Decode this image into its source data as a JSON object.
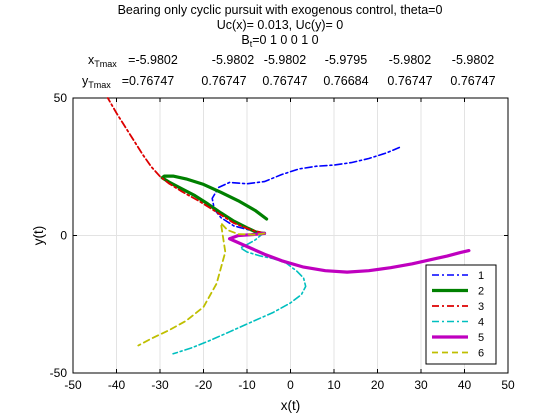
{
  "title": {
    "line1": "Bearing only cyclic pursuit with exogenous control, theta=0",
    "line2": "Uc(x)= 0.013, Uc(y)= 0",
    "bt_base": "B",
    "bt_sub": "t",
    "bt_values": "=0  1  0  0  1  0"
  },
  "tmax": {
    "x_base": "x",
    "x_sub": "Tmax",
    "x_values": [
      "=-5.9802",
      "-5.9802",
      "-5.9802",
      "-5.9795",
      "-5.9802",
      "-5.9802"
    ],
    "y_base": "y",
    "y_sub": "Tmax",
    "y_values": [
      "=0.76747",
      "0.76747",
      "0.76747",
      "0.76684",
      "0.76747",
      "0.76747"
    ]
  },
  "chart_data": {
    "type": "line",
    "xlabel": "x(t)",
    "ylabel": "y(t)",
    "xlim": [
      -50,
      50
    ],
    "ylim": [
      -50,
      50
    ],
    "xticks": [
      -50,
      -40,
      -30,
      -20,
      -10,
      0,
      10,
      20,
      30,
      40,
      50
    ],
    "yticks": [
      -50,
      0,
      50
    ],
    "xtick_labels": [
      "-50",
      "-40",
      "-30",
      "-20",
      "-10",
      "0",
      "10",
      "20",
      "30",
      "40",
      "50"
    ],
    "ytick_labels": [
      "-50",
      "0",
      "50"
    ],
    "grid": true,
    "legend_position": "bottom-right",
    "series": [
      {
        "name": "1",
        "color": "#0000ff",
        "dash": "dashdot",
        "width": 1.6,
        "x": [
          25,
          22,
          18,
          14,
          10,
          6,
          2,
          -2,
          -6,
          -10,
          -14,
          -16.5,
          -18,
          -17.5,
          -16,
          -13,
          -10,
          -8,
          -6,
          -6.5,
          -5.98
        ],
        "y": [
          32,
          30,
          28,
          26.5,
          25.6,
          25.2,
          24.2,
          22.2,
          19.6,
          18.8,
          19.3,
          17.5,
          13.5,
          9.5,
          6.5,
          3.5,
          2.2,
          1.4,
          1,
          0.8,
          0.77
        ]
      },
      {
        "name": "2",
        "color": "#008000",
        "dash": "solid",
        "width": 3.2,
        "x": [
          -5.98,
          -6.5,
          -8,
          -10,
          -13,
          -16,
          -19,
          -22,
          -25,
          -28,
          -29.5,
          -29,
          -27,
          -24,
          -20,
          -16,
          -12,
          -8,
          -5.5
        ],
        "y": [
          0.77,
          0.8,
          1.3,
          2.8,
          5.2,
          8.2,
          11.5,
          14.5,
          17,
          19.5,
          21,
          21.6,
          21.6,
          20.6,
          18.6,
          15.7,
          12.6,
          9,
          6
        ]
      },
      {
        "name": "3",
        "color": "#dd0000",
        "dash": "dashdot",
        "width": 1.8,
        "x": [
          -5.98,
          -6.5,
          -9,
          -13,
          -17,
          -21,
          -25,
          -28,
          -30,
          -32,
          -34,
          -36,
          -38,
          -40,
          -42
        ],
        "y": [
          0.77,
          1,
          2,
          4.5,
          8.5,
          12.5,
          16,
          19,
          21.5,
          25,
          29.5,
          34.5,
          39.5,
          44.5,
          50
        ]
      },
      {
        "name": "4",
        "color": "#00bfbf",
        "dash": "dashdot",
        "width": 1.6,
        "x": [
          -5.98,
          -6.5,
          -8,
          -10,
          -11.5,
          -10,
          -7,
          -4,
          -1,
          1.5,
          3,
          3.5,
          2.5,
          0,
          -4,
          -9,
          -14,
          -19,
          -23,
          -27
        ],
        "y": [
          0.77,
          0.5,
          -1.5,
          -3.3,
          -4.5,
          -6,
          -7.4,
          -8.4,
          -10,
          -13,
          -15.5,
          -18.5,
          -21.5,
          -24.5,
          -28,
          -31.5,
          -35,
          -38.5,
          -41,
          -43
        ]
      },
      {
        "name": "5",
        "color": "#bf00bf",
        "dash": "solid",
        "width": 3.2,
        "x": [
          -5.98,
          -9,
          -12,
          -14,
          -10,
          -6,
          -2,
          3,
          8,
          13,
          18,
          23,
          28,
          33,
          36,
          39,
          41
        ],
        "y": [
          0.77,
          0.3,
          0,
          -1.2,
          -4,
          -6.8,
          -9.2,
          -11.5,
          -12.8,
          -13.3,
          -12.8,
          -11.7,
          -10.3,
          -8.5,
          -7.5,
          -6.2,
          -5.5
        ]
      },
      {
        "name": "6",
        "color": "#bfbf00",
        "dash": "dashed",
        "width": 1.8,
        "x": [
          -5.98,
          -8,
          -12,
          -14.5,
          -16,
          -15,
          -17,
          -20,
          -24,
          -28,
          -32,
          -35
        ],
        "y": [
          0.77,
          0.3,
          0.5,
          2,
          4.5,
          -6,
          -17.5,
          -26,
          -31,
          -34.5,
          -37.5,
          -40
        ]
      }
    ]
  }
}
